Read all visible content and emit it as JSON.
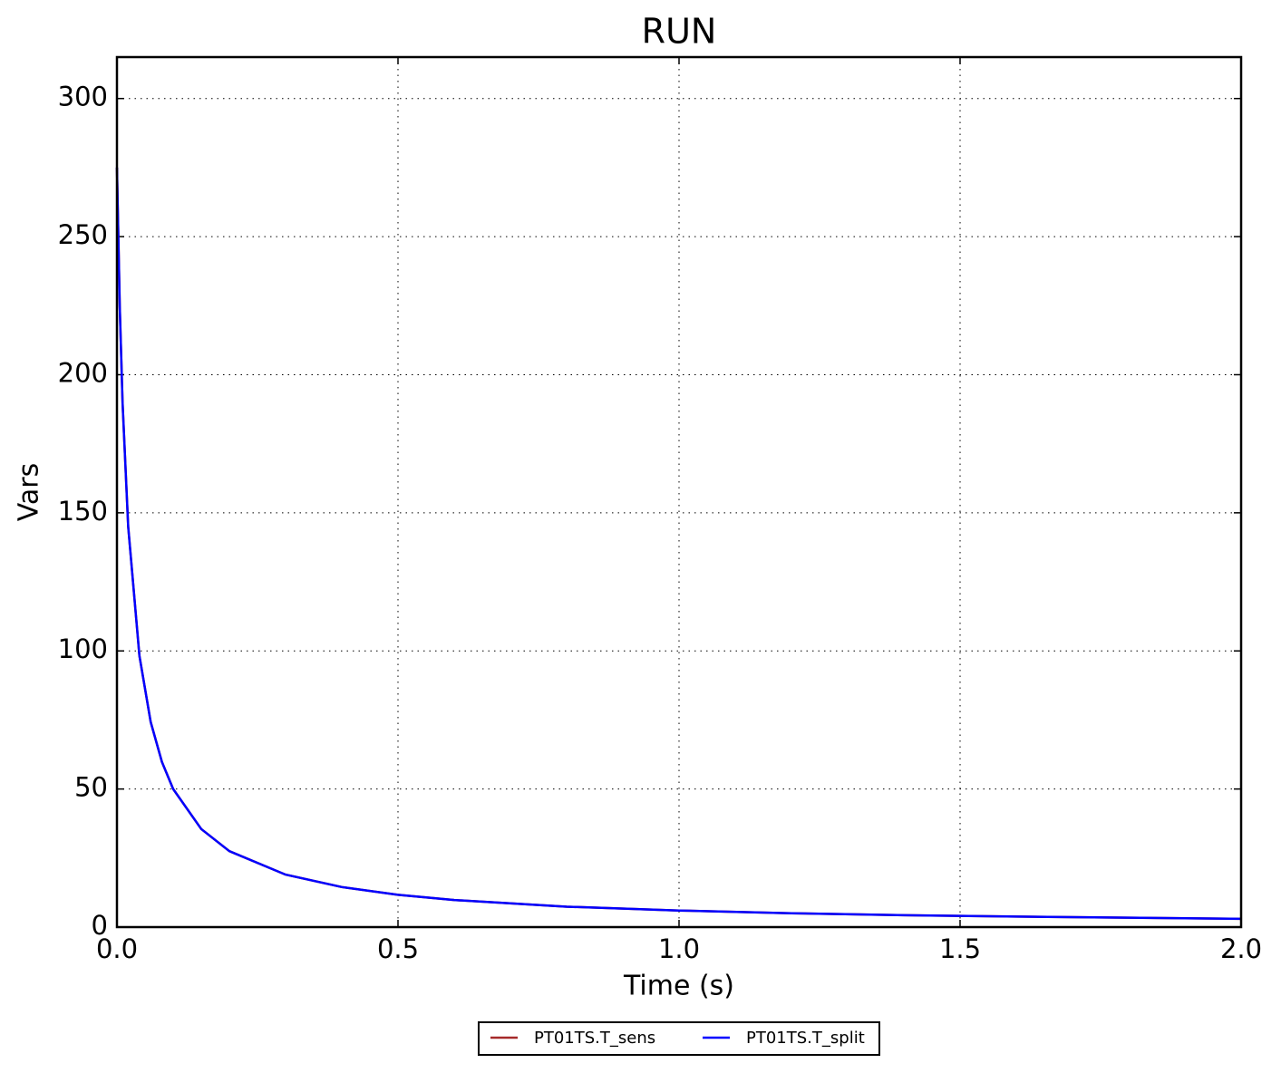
{
  "chart_data": {
    "type": "line",
    "title": "RUN",
    "x_label": "Time (s)",
    "y_label": "Vars",
    "x": [
      0,
      0.005,
      0.01,
      0.02,
      0.04,
      0.06,
      0.08,
      0.1,
      0.15,
      0.2,
      0.3,
      0.4,
      0.5,
      0.6,
      0.8,
      1.0,
      1.2,
      1.4,
      1.6,
      1.8,
      2.0
    ],
    "series": [
      {
        "name": "PT01TS.T_sens",
        "color": "#a52a2a",
        "values": [
          275,
          224.6,
          189.8,
          145,
          98.2,
          74.3,
          59.8,
          50.0,
          35.5,
          27.5,
          19.0,
          14.5,
          11.7,
          9.8,
          7.4,
          6.0,
          5.0,
          4.3,
          3.8,
          3.4,
          3.0
        ]
      },
      {
        "name": "PT01TS.T_split",
        "color": "#0000ff",
        "values": [
          275,
          224.6,
          189.8,
          145,
          98.2,
          74.3,
          59.8,
          50.0,
          35.5,
          27.5,
          19.0,
          14.5,
          11.7,
          9.8,
          7.4,
          6.0,
          5.0,
          4.3,
          3.8,
          3.4,
          3.0
        ]
      }
    ],
    "xlim": [
      0,
      2
    ],
    "ylim": [
      0,
      315
    ],
    "xticks": [
      {
        "value": 0,
        "label": "0.0"
      },
      0.5,
      {
        "value": 1,
        "label": "1.0"
      },
      1.5,
      {
        "value": 2,
        "label": "2.0"
      }
    ],
    "yticks": [
      0,
      50,
      100,
      150,
      200,
      250,
      300
    ],
    "grid": true,
    "legend": "bottom"
  }
}
